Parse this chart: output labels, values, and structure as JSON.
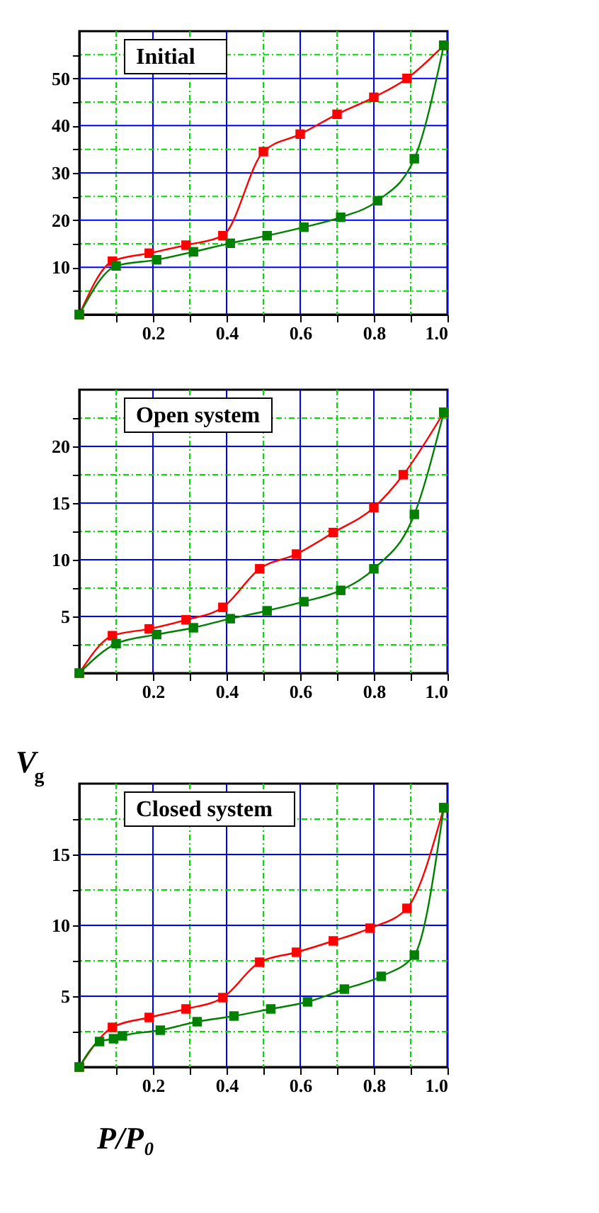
{
  "chart_data": [
    {
      "type": "line",
      "title": "Initial",
      "marker": "square",
      "grid": true,
      "xlim": [
        0,
        1
      ],
      "xticks": [
        {
          "value": 0.1,
          "label": null
        },
        0.2,
        {
          "value": 0.3,
          "label": null
        },
        0.4,
        {
          "value": 0.5,
          "label": null
        },
        0.6,
        {
          "value": 0.7,
          "label": null
        },
        0.8,
        {
          "value": 0.9,
          "label": null
        },
        {
          "value": 1,
          "label": "1.0"
        }
      ],
      "ylim": [
        0,
        60
      ],
      "yticks": [
        {
          "value": 5,
          "label": null
        },
        10,
        {
          "value": 15,
          "label": null
        },
        20,
        {
          "value": 25,
          "label": null
        },
        30,
        {
          "value": 35,
          "label": null
        },
        40,
        {
          "value": 45,
          "label": null
        },
        50,
        {
          "value": 55,
          "label": null
        }
      ],
      "series": [
        {
          "color": "#ff0000",
          "x": [
            0,
            0.09,
            0.19,
            0.29,
            0.39,
            0.5,
            0.6,
            0.7,
            0.8,
            0.89,
            0.99
          ],
          "values": [
            0,
            11.3,
            13,
            14.7,
            16.7,
            34.5,
            38.2,
            42.4,
            46,
            50,
            57
          ]
        },
        {
          "color": "#008000",
          "x": [
            0,
            0.1,
            0.21,
            0.31,
            0.41,
            0.51,
            0.61,
            0.71,
            0.81,
            0.91,
            0.99
          ],
          "values": [
            0,
            10.3,
            11.6,
            13.3,
            15.1,
            16.7,
            18.5,
            20.6,
            24.1,
            33,
            57
          ]
        }
      ]
    },
    {
      "type": "line",
      "title": "Open system",
      "marker": "square",
      "grid": true,
      "xlim": [
        0,
        1
      ],
      "xticks": [
        {
          "value": 0.1,
          "label": null
        },
        0.2,
        {
          "value": 0.3,
          "label": null
        },
        0.4,
        {
          "value": 0.5,
          "label": null
        },
        0.6,
        {
          "value": 0.7,
          "label": null
        },
        0.8,
        {
          "value": 0.9,
          "label": null
        },
        {
          "value": 1,
          "label": "1.0"
        }
      ],
      "ylim": [
        0,
        25
      ],
      "yticks": [
        {
          "value": 2.5,
          "label": null
        },
        5,
        {
          "value": 7.5,
          "label": null
        },
        10,
        {
          "value": 12.5,
          "label": null
        },
        15,
        {
          "value": 17.5,
          "label": null
        },
        20,
        {
          "value": 22.5,
          "label": null
        }
      ],
      "series": [
        {
          "color": "#ff0000",
          "x": [
            0,
            0.09,
            0.19,
            0.29,
            0.39,
            0.49,
            0.59,
            0.69,
            0.8,
            0.88,
            0.99
          ],
          "values": [
            0,
            3.3,
            3.9,
            4.7,
            5.8,
            9.2,
            10.5,
            12.4,
            14.6,
            17.5,
            23
          ]
        },
        {
          "color": "#008000",
          "x": [
            0,
            0.1,
            0.21,
            0.31,
            0.41,
            0.51,
            0.61,
            0.71,
            0.8,
            0.91,
            0.99
          ],
          "values": [
            0,
            2.6,
            3.4,
            4.0,
            4.8,
            5.5,
            6.3,
            7.3,
            9.2,
            14,
            23
          ]
        }
      ]
    },
    {
      "type": "line",
      "title": "Closed system",
      "xlabel": "P/P₀",
      "ylabel": "V$_{g}$",
      "marker": "square",
      "grid": true,
      "xlim": [
        0,
        1
      ],
      "xticks": [
        {
          "value": 0.1,
          "label": null
        },
        0.2,
        {
          "value": 0.3,
          "label": null
        },
        0.4,
        {
          "value": 0.5,
          "label": null
        },
        0.6,
        {
          "value": 0.7,
          "label": null
        },
        0.8,
        {
          "value": 0.9,
          "label": null
        },
        {
          "value": 1,
          "label": "1.0"
        }
      ],
      "ylim": [
        0,
        20
      ],
      "yticks": [
        {
          "value": 2.5,
          "label": null
        },
        5,
        {
          "value": 7.5,
          "label": null
        },
        10,
        {
          "value": 12.5,
          "label": null
        },
        15,
        {
          "value": 17.5,
          "label": null
        }
      ],
      "series": [
        {
          "color": "#ff0000",
          "x": [
            0,
            0.09,
            0.19,
            0.29,
            0.39,
            0.49,
            0.59,
            0.69,
            0.79,
            0.89,
            0.99
          ],
          "values": [
            0,
            2.8,
            3.5,
            4.1,
            4.9,
            7.4,
            8.1,
            8.9,
            9.8,
            11.2,
            18.3
          ]
        },
        {
          "color": "#008000",
          "x": [
            0,
            0.055,
            0.093,
            0.117,
            0.22,
            0.32,
            0.42,
            0.52,
            0.62,
            0.72,
            0.82,
            0.91,
            0.99
          ],
          "values": [
            0,
            1.8,
            2.0,
            2.2,
            2.6,
            3.2,
            3.6,
            4.1,
            4.6,
            5.5,
            6.4,
            7.9,
            18.3
          ]
        }
      ]
    }
  ]
}
